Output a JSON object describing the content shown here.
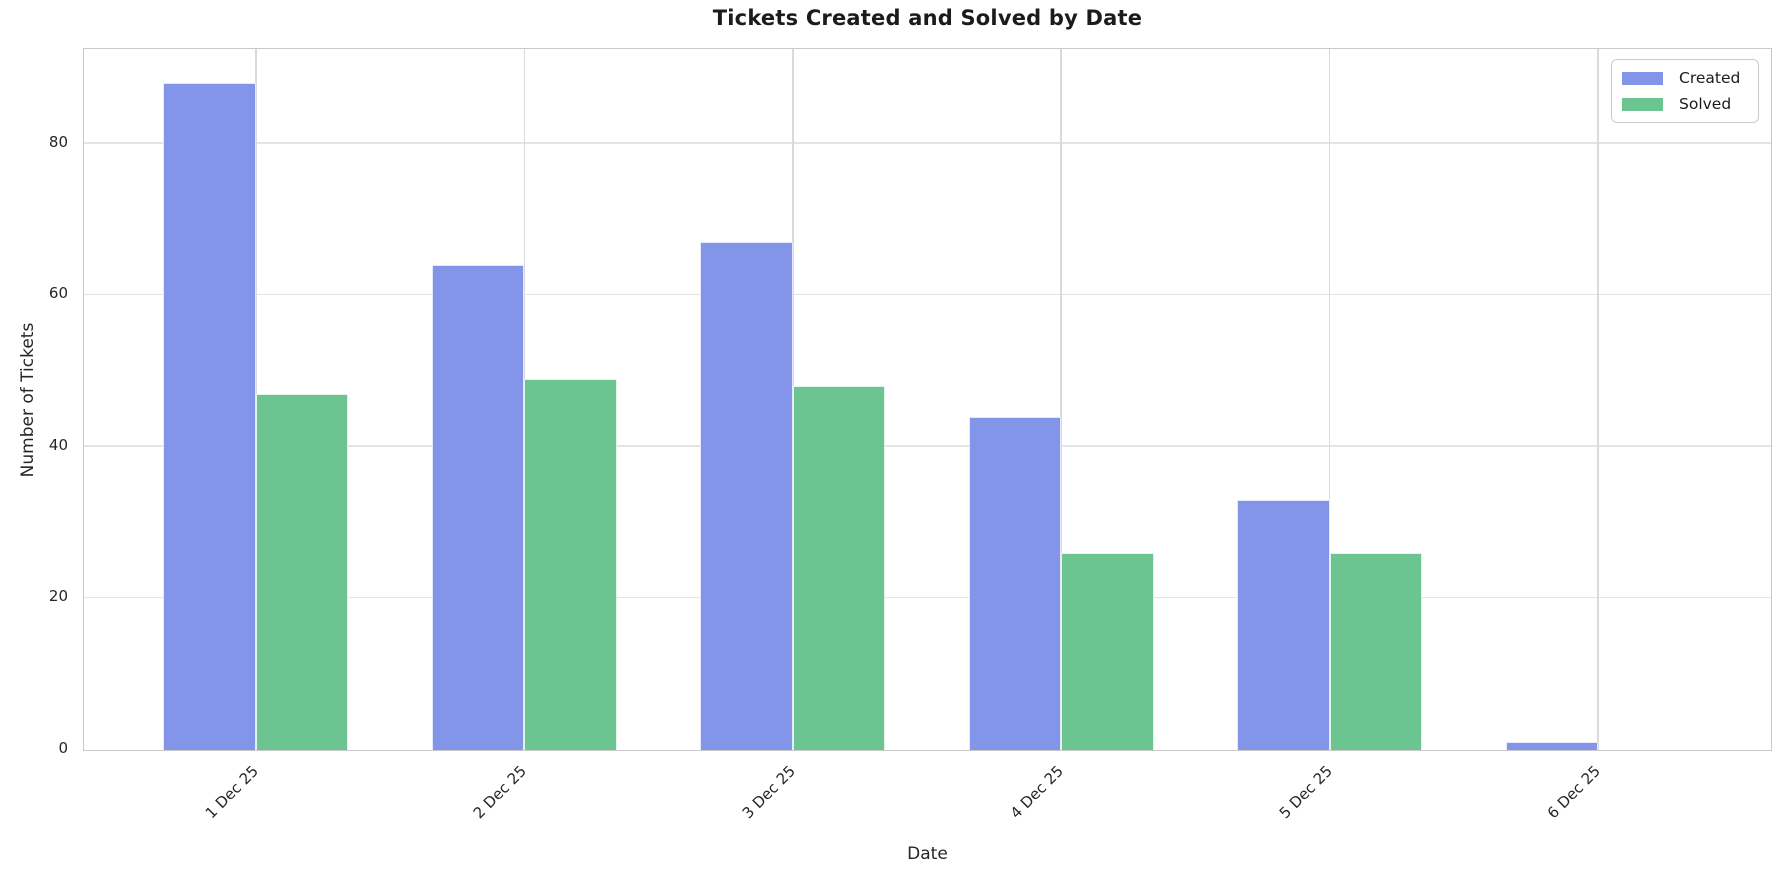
{
  "chart_data": {
    "type": "bar",
    "title": "Tickets Created and Solved by Date",
    "xlabel": "Date",
    "ylabel": "Number of Tickets",
    "categories": [
      "1 Dec 25",
      "2 Dec 25",
      "3 Dec 25",
      "4 Dec 25",
      "5 Dec 25",
      "6 Dec 25"
    ],
    "series": [
      {
        "name": "Created",
        "color": "#8295e8",
        "values": [
          88,
          64,
          67,
          44,
          33,
          1
        ]
      },
      {
        "name": "Solved",
        "color": "#6cc591",
        "values": [
          47,
          49,
          48,
          26,
          26,
          0
        ]
      }
    ],
    "yticks": [
      0,
      20,
      40,
      60,
      80
    ],
    "ylim": [
      0,
      92.4
    ],
    "xlim_units": [
      -0.64,
      5.64
    ],
    "bar_width_units": 0.345,
    "grid": true,
    "legend_position": "upper right",
    "x_tick_rotation_deg": 45
  },
  "colors": {
    "created": "#8295e8",
    "solved": "#6cc591",
    "grid_h": "#e4e4e4",
    "grid_v": "#dadada",
    "spine": "#c9c9c9",
    "text": "#262626"
  }
}
